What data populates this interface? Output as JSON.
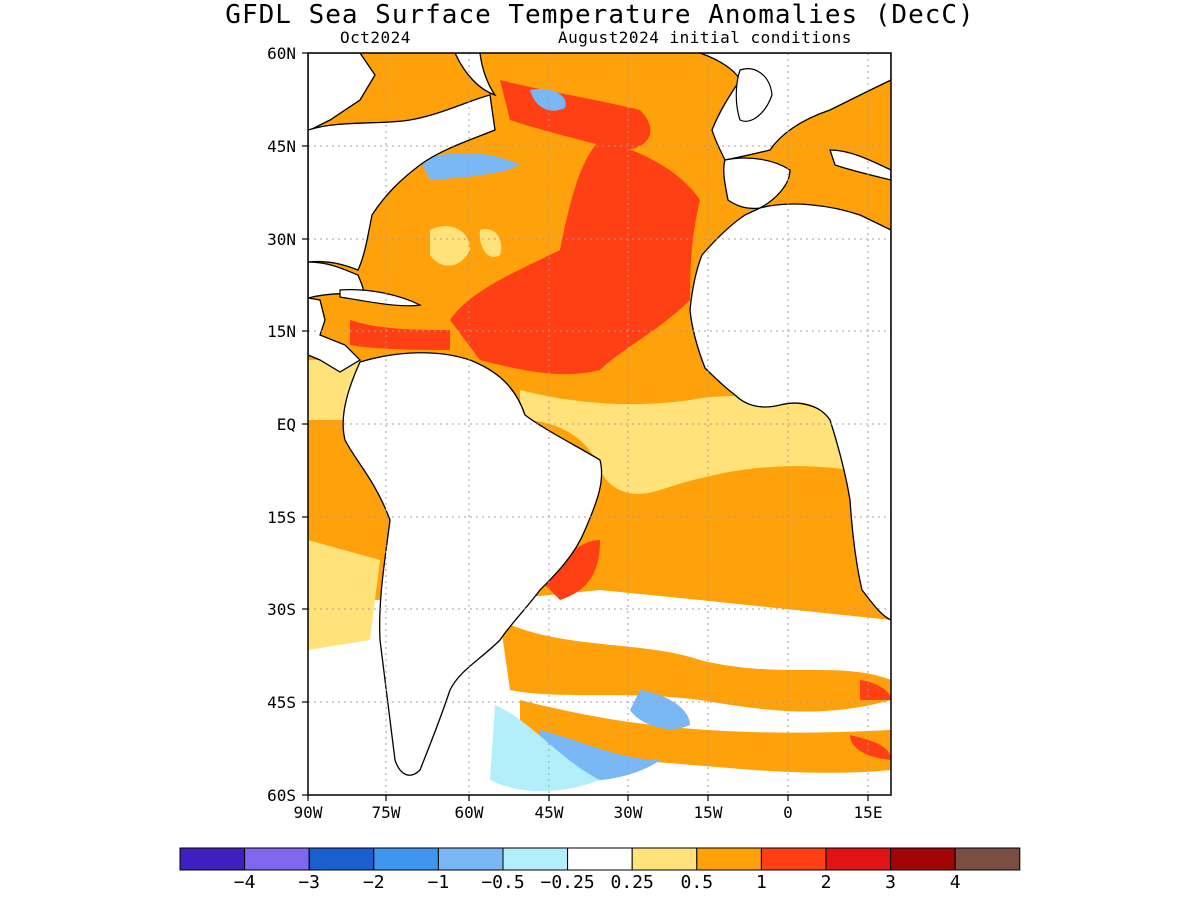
{
  "title": "GFDL Sea Surface Temperature Anomalies (DecC)",
  "subtitle_left": "Oct2024",
  "subtitle_right": "August2024 initial conditions",
  "lat_ticks": [
    "60N",
    "45N",
    "30N",
    "15N",
    "EQ",
    "15S",
    "30S",
    "45S",
    "60S"
  ],
  "lon_ticks": [
    "90W",
    "75W",
    "60W",
    "45W",
    "30W",
    "15W",
    "0",
    "15E"
  ],
  "colorbar": {
    "colors": [
      "#3f1fbf",
      "#7f67ef",
      "#1a5fd0",
      "#3f96ef",
      "#79b7f5",
      "#b3effa",
      "#ffffff",
      "#ffe27a",
      "#ffa10a",
      "#ff3f14",
      "#e01414",
      "#a10505",
      "#7a4e40"
    ],
    "labels": [
      "−4",
      "−3",
      "−2",
      "−1",
      "−0.5",
      "−0.25",
      "0.25",
      "0.5",
      "1",
      "2",
      "3",
      "4"
    ]
  },
  "colors": {
    "land": "#ffffff",
    "coast": "#000000",
    "grid": "#a0a0a0"
  }
}
